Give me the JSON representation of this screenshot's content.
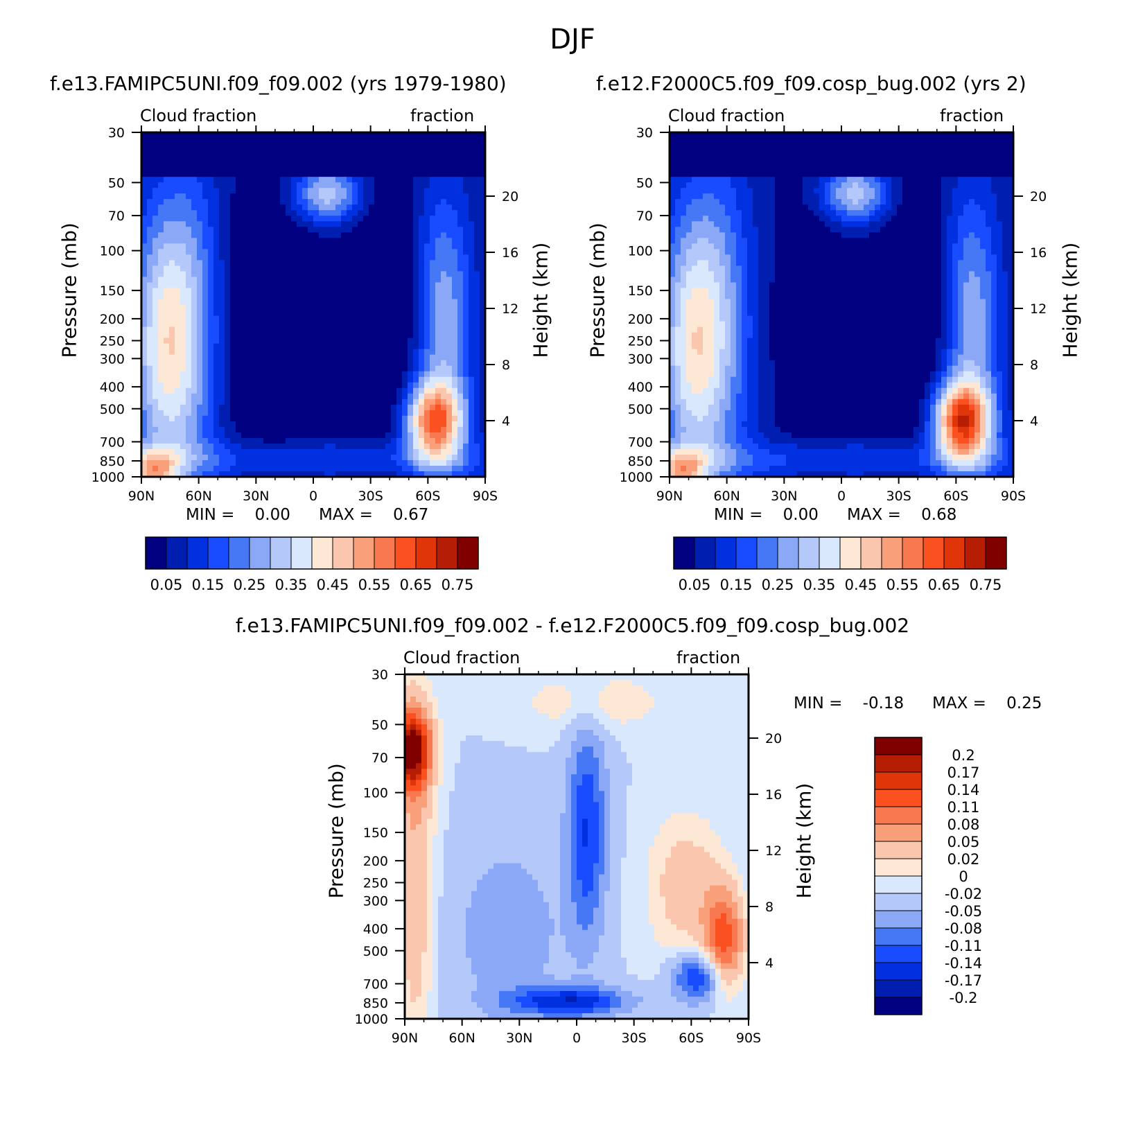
{
  "figure_title": "DJF",
  "panels": [
    {
      "title": "f.e13.FAMIPC5UNI.f09_f09.002 (yrs 1979-1980)",
      "top_left": "Cloud fraction",
      "top_right": "fraction",
      "min_text": "MIN =    0.00",
      "max_text": "MAX =    0.67",
      "ylabel": "Pressure (mb)",
      "y2label": "Height (km)"
    },
    {
      "title": "f.e12.F2000C5.f09_f09.cosp_bug.002 (yrs 2)",
      "top_left": "Cloud fraction",
      "top_right": "fraction",
      "min_text": "MIN =    0.00",
      "max_text": "MAX =    0.68",
      "ylabel": "Pressure (mb)",
      "y2label": "Height (km)"
    },
    {
      "title": "f.e13.FAMIPC5UNI.f09_f09.002 - f.e12.F2000C5.f09_f09.cosp_bug.002",
      "top_left": "Cloud fraction",
      "top_right": "fraction",
      "min_text": "MIN =    -0.18",
      "max_text": "MAX =    0.25",
      "ylabel": "Pressure (mb)",
      "y2label": "Height (km)"
    }
  ],
  "chart_data": [
    {
      "type": "heatmap",
      "title": "f.e13.FAMIPC5UNI.f09_f09.002 (yrs 1979-1980)",
      "xlabel": "",
      "ylabel": "Pressure (mb)",
      "y2label": "Height (km)",
      "x_ticks": [
        "90N",
        "60N",
        "30N",
        "0",
        "30S",
        "60S",
        "90S"
      ],
      "y_ticks": [
        30,
        50,
        70,
        100,
        150,
        200,
        250,
        300,
        400,
        500,
        700,
        850,
        1000
      ],
      "y2_ticks": [
        20,
        16,
        12,
        8,
        4
      ],
      "min": 0.0,
      "max": 0.67,
      "colorbar_levels": [
        "0.05",
        "0.15",
        "0.25",
        "0.35",
        "0.45",
        "0.55",
        "0.65",
        "0.75"
      ]
    },
    {
      "type": "heatmap",
      "title": "f.e12.F2000C5.f09_f09.cosp_bug.002 (yrs 2)",
      "xlabel": "",
      "ylabel": "Pressure (mb)",
      "y2label": "Height (km)",
      "x_ticks": [
        "90N",
        "60N",
        "30N",
        "0",
        "30S",
        "60S",
        "90S"
      ],
      "y_ticks": [
        30,
        50,
        70,
        100,
        150,
        200,
        250,
        300,
        400,
        500,
        700,
        850,
        1000
      ],
      "y2_ticks": [
        20,
        16,
        12,
        8,
        4
      ],
      "min": 0.0,
      "max": 0.68,
      "colorbar_levels": [
        "0.05",
        "0.15",
        "0.25",
        "0.35",
        "0.45",
        "0.55",
        "0.65",
        "0.75"
      ]
    },
    {
      "type": "heatmap",
      "title": "f.e13.FAMIPC5UNI.f09_f09.002 - f.e12.F2000C5.f09_f09.cosp_bug.002",
      "xlabel": "",
      "ylabel": "Pressure (mb)",
      "y2label": "Height (km)",
      "x_ticks": [
        "90N",
        "60N",
        "30N",
        "0",
        "30S",
        "60S",
        "90S"
      ],
      "y_ticks": [
        30,
        50,
        70,
        100,
        150,
        200,
        250,
        300,
        400,
        500,
        700,
        850,
        1000
      ],
      "y2_ticks": [
        20,
        16,
        12,
        8,
        4
      ],
      "min": -0.18,
      "max": 0.25,
      "colorbar_levels": [
        "0.2",
        "0.17",
        "0.14",
        "0.11",
        "0.08",
        "0.05",
        "0.02",
        "0",
        "-0.02",
        "-0.05",
        "-0.08",
        "-0.11",
        "-0.14",
        "-0.17",
        "-0.2"
      ]
    }
  ],
  "colors": {
    "seq": [
      "#000080",
      "#001fb0",
      "#0030e0",
      "#1a4cff",
      "#4678f5",
      "#8aa8f5",
      "#b4c8fa",
      "#d9e8fc",
      "#fde8d6",
      "#fac7ae",
      "#f9a07a",
      "#f8784f",
      "#fb5020",
      "#df3508",
      "#b51e05",
      "#800000"
    ],
    "div": [
      "#800000",
      "#b51e05",
      "#df3508",
      "#fb5020",
      "#f8784f",
      "#f9a07a",
      "#fac7ae",
      "#fde8d6",
      "#d9e8fc",
      "#b4c8fa",
      "#8aa8f5",
      "#4678f5",
      "#1a4cff",
      "#0030e0",
      "#001fb0",
      "#000080"
    ]
  }
}
